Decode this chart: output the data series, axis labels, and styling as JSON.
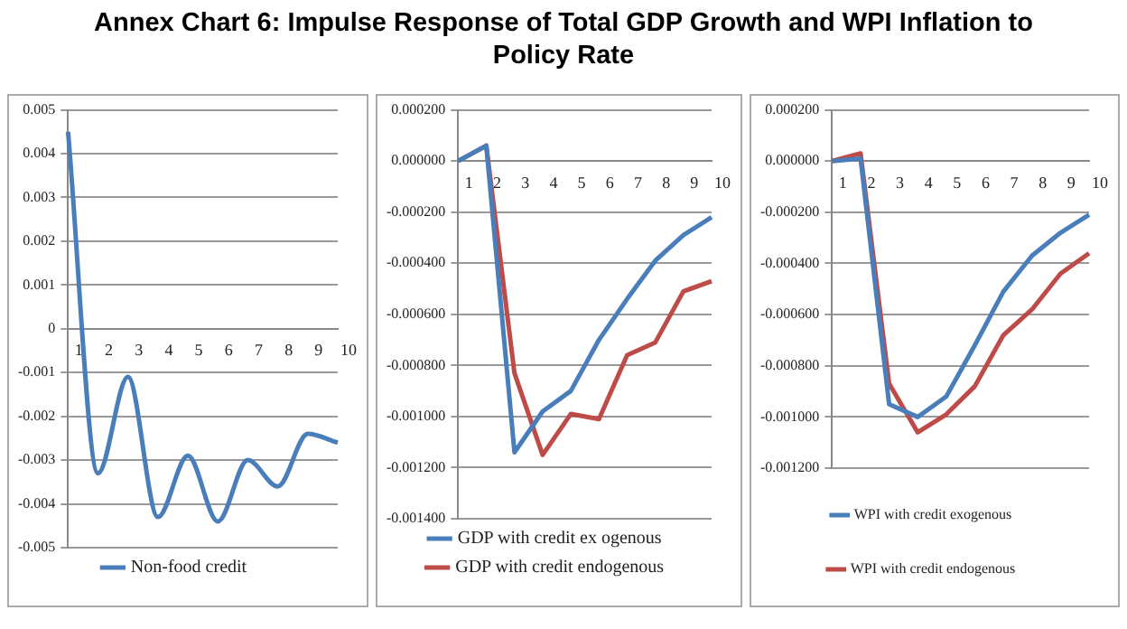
{
  "chart_data": [
    {
      "type": "line",
      "title": "Annex Chart 6: Impulse Response of Total GDP Growth and WPI Inflation to Policy Rate",
      "categories": [
        "1",
        "2",
        "3",
        "4",
        "5",
        "6",
        "7",
        "8",
        "9",
        "10"
      ],
      "series": [
        {
          "name": "Non-food credit",
          "color": "#4a7ebb",
          "values": [
            0.0045,
            -0.0033,
            -0.0011,
            -0.0043,
            -0.0029,
            -0.0044,
            -0.003,
            -0.0036,
            -0.0024,
            -0.0026
          ]
        }
      ],
      "ylim": [
        -0.005,
        0.005
      ],
      "yticks": [
        -0.005,
        -0.004,
        -0.003,
        -0.002,
        -0.001,
        0,
        0.001,
        0.002,
        0.003,
        0.004,
        0.005
      ],
      "grid": "y",
      "legend": "bottom",
      "marker": "none",
      "line_style": "solid"
    },
    {
      "type": "line",
      "categories": [
        "1",
        "2",
        "3",
        "4",
        "5",
        "6",
        "7",
        "8",
        "9",
        "10"
      ],
      "series": [
        {
          "name": "GDP with credit ex ogenous",
          "color": "#4a7ebb",
          "values": [
            0,
            6e-05,
            -0.00114,
            -0.00098,
            -0.0009,
            -0.0007,
            -0.00054,
            -0.00039,
            -0.00029,
            -0.00022
          ]
        },
        {
          "name": "GDP with credit endogenous",
          "color": "#be4b48",
          "values": [
            0,
            6e-05,
            -0.00083,
            -0.00115,
            -0.00099,
            -0.00101,
            -0.00076,
            -0.00071,
            -0.00051,
            -0.00047
          ]
        }
      ],
      "ylim": [
        -0.0014,
        0.0002
      ],
      "yticks": [
        {
          "value": -0.0014,
          "label": "-0.001400"
        },
        {
          "value": -0.0012,
          "label": "-0.001200"
        },
        {
          "value": -0.001,
          "label": "-0.001000"
        },
        {
          "value": -0.0008,
          "label": "-0.000800"
        },
        {
          "value": -0.0006,
          "label": "-0.000600"
        },
        {
          "value": -0.0004,
          "label": "-0.000400"
        },
        {
          "value": -0.0002,
          "label": "-0.000200"
        },
        {
          "value": 0,
          "label": "0.000000"
        },
        {
          "value": 0.0002,
          "label": "0.000200"
        }
      ],
      "grid": "y",
      "legend": "bottom",
      "marker": "none",
      "line_style": "solid"
    },
    {
      "type": "line",
      "categories": [
        "1",
        "2",
        "3",
        "4",
        "5",
        "6",
        "7",
        "8",
        "9",
        "10"
      ],
      "series": [
        {
          "name": "WPI with credit exogenous",
          "color": "#4a7ebb",
          "values": [
            0,
            1e-05,
            -0.00095,
            -0.001,
            -0.00092,
            -0.00072,
            -0.00051,
            -0.00037,
            -0.00028,
            -0.00021
          ]
        },
        {
          "name": "WPI with credit endogenous",
          "color": "#be4b48",
          "values": [
            0,
            3e-05,
            -0.00087,
            -0.00106,
            -0.00099,
            -0.00088,
            -0.00068,
            -0.00058,
            -0.00044,
            -0.00036
          ]
        }
      ],
      "ylim": [
        -0.0012,
        0.0002
      ],
      "yticks": [
        {
          "value": -0.0012,
          "label": "-0.001200"
        },
        {
          "value": -0.001,
          "label": "-0.001000"
        },
        {
          "value": -0.0008,
          "label": "-0.000800"
        },
        {
          "value": -0.0006,
          "label": "-0.000600"
        },
        {
          "value": -0.0004,
          "label": "-0.000400"
        },
        {
          "value": -0.0002,
          "label": "-0.000200"
        },
        {
          "value": 0,
          "label": "0.000000"
        },
        {
          "value": 0.0002,
          "label": "0.000200"
        }
      ],
      "grid": "y",
      "legend": "bottom",
      "marker": "none",
      "line_style": "solid"
    }
  ]
}
